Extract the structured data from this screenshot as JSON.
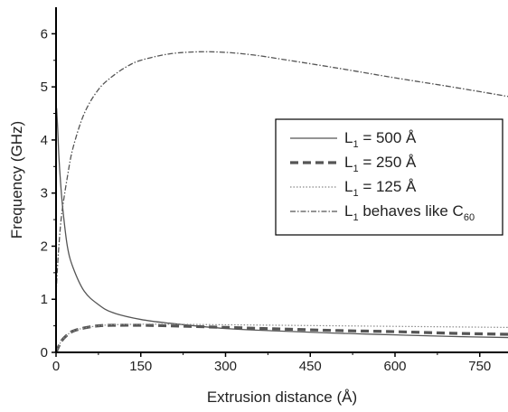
{
  "chart_data": {
    "type": "line",
    "title": "",
    "xlabel": "Extrusion distance (Å)",
    "ylabel": "Frequency (GHz)",
    "xlim": [
      0,
      800
    ],
    "ylim": [
      0,
      6.5
    ],
    "xticks": [
      "0",
      "150",
      "300",
      "450",
      "600",
      "750"
    ],
    "yticks": [
      "0",
      "1",
      "2",
      "3",
      "4",
      "5",
      "6"
    ],
    "grid": false,
    "legend_position": "right",
    "series": [
      {
        "name": "L1 = 500 Å",
        "legend": {
          "main": "L",
          "sub": "1",
          "rest": " = 500 Å"
        },
        "style": "solid",
        "color": "#555555",
        "x": [
          1,
          3,
          5,
          8,
          12,
          20,
          30,
          50,
          75,
          100,
          150,
          200,
          300,
          400,
          500,
          600,
          700,
          800
        ],
        "y": [
          4.6,
          4.2,
          3.7,
          3.2,
          2.7,
          2.0,
          1.6,
          1.15,
          0.9,
          0.75,
          0.62,
          0.55,
          0.45,
          0.4,
          0.36,
          0.33,
          0.3,
          0.28
        ]
      },
      {
        "name": "L1 = 250 Å",
        "legend": {
          "main": "L",
          "sub": "1",
          "rest": " = 250 Å"
        },
        "style": "dashed",
        "color": "#555555",
        "x": [
          0,
          5,
          10,
          20,
          30,
          50,
          75,
          100,
          150,
          200,
          300,
          400,
          500,
          600,
          700,
          800
        ],
        "y": [
          0.0,
          0.12,
          0.22,
          0.33,
          0.4,
          0.46,
          0.5,
          0.51,
          0.51,
          0.5,
          0.47,
          0.44,
          0.41,
          0.39,
          0.36,
          0.34
        ]
      },
      {
        "name": "L1 = 125 Å",
        "legend": {
          "main": "L",
          "sub": "1",
          "rest": " = 125 Å"
        },
        "style": "dotted",
        "color": "#8a8a8a",
        "x": [
          0,
          5,
          10,
          20,
          30,
          50,
          75,
          100,
          150,
          200,
          300,
          400,
          500,
          600,
          700,
          800
        ],
        "y": [
          0.0,
          0.12,
          0.22,
          0.33,
          0.4,
          0.46,
          0.5,
          0.52,
          0.53,
          0.53,
          0.52,
          0.51,
          0.5,
          0.49,
          0.48,
          0.47
        ]
      },
      {
        "name": "L1 behaves like C60",
        "legend": {
          "main": "L",
          "sub": "1",
          "rest": " behaves like C",
          "sub2": "60"
        },
        "style": "dashdot",
        "color": "#555555",
        "x": [
          0,
          2,
          5,
          10,
          20,
          30,
          50,
          75,
          100,
          125,
          150,
          200,
          250,
          300,
          350,
          400,
          500,
          600,
          700,
          800
        ],
        "y": [
          1.1,
          1.5,
          2.0,
          2.6,
          3.3,
          3.85,
          4.5,
          4.95,
          5.2,
          5.38,
          5.5,
          5.62,
          5.66,
          5.65,
          5.6,
          5.52,
          5.35,
          5.17,
          5.0,
          4.82
        ]
      }
    ]
  }
}
